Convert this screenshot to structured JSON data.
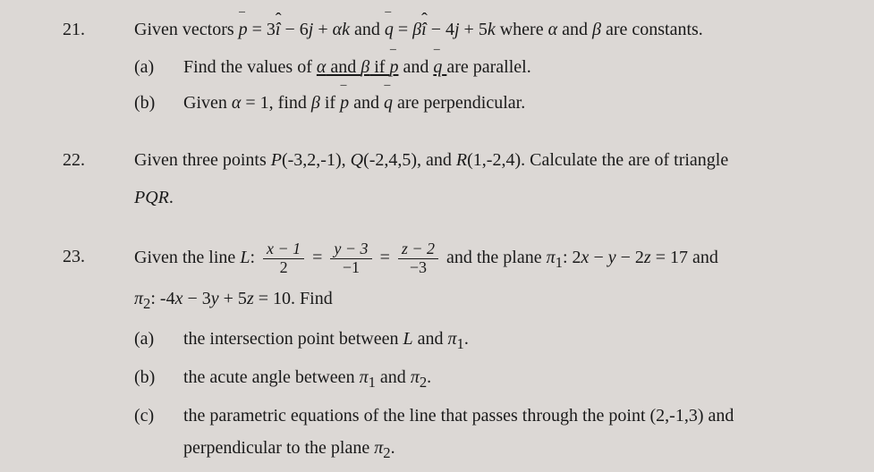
{
  "background_color": "#dcd8d5",
  "text_color": "#1a1a1a",
  "font_family": "Times New Roman",
  "font_size": 20,
  "problems": {
    "p21": {
      "number": "21.",
      "intro_pre": "Given vectors ",
      "eq1_lhs_vec": "p",
      "eq1_eq": " = 3",
      "eq1_i": "î",
      "eq1_mid1": " − 6",
      "eq1_j": "j",
      "eq1_mid2": " + ",
      "eq1_alpha": "α",
      "eq1_k": "k",
      "intro_and": " and ",
      "eq2_lhs_vec": "q",
      "eq2_eq": " = ",
      "eq2_beta": "β",
      "eq2_i": "î",
      "eq2_mid1": " − 4",
      "eq2_j": "j",
      "eq2_mid2": " + 5",
      "eq2_k": "k",
      "intro_tail": " where ",
      "alpha_var": "α",
      "and2": " and ",
      "beta_var": "β",
      "intro_end": " are constants.",
      "a_label": "(a)",
      "a_pre": "Find the values of ",
      "a_alpha": "α",
      "a_and": " and ",
      "a_beta": "β",
      "a_if": " if ",
      "a_p": "p",
      "a_and2": " and ",
      "a_q": "q",
      "a_end": " are parallel.",
      "b_label": "(b)",
      "b_pre": "Given ",
      "b_alpha": "α",
      "b_eq": " = 1, find ",
      "b_beta": "β",
      "b_if": " if ",
      "b_p": "p",
      "b_and": " and ",
      "b_q": "q",
      "b_end": " are perpendicular."
    },
    "p22": {
      "number": "22.",
      "text_pre": "Given three points ",
      "P": "P",
      "P_coords": "(-3,2,-1), ",
      "Q": "Q",
      "Q_coords": "(-2,4,5), and ",
      "R": "R",
      "R_coords": "(1,-2,4). Calculate the are of triangle",
      "line2": "PQR",
      "line2_end": "."
    },
    "p23": {
      "number": "23.",
      "intro_pre": "Given the line ",
      "L": "L",
      "colon": ":  ",
      "f1_num": "x − 1",
      "f1_den": "2",
      "eq1": " = ",
      "f2_num": "y − 3",
      "f2_den": "−1",
      "eq2": " = ",
      "f3_num": "z − 2",
      "f3_den": "−3",
      "intro_mid": " and the plane ",
      "pi1": "π",
      "pi1_sub": "1",
      "pi1_colon": ": 2",
      "pi1_x": "x",
      "pi1_mid1": " − ",
      "pi1_y": "y",
      "pi1_mid2": " − 2",
      "pi1_z": "z",
      "pi1_end": " = 17 and",
      "line2_pi2": "π",
      "line2_pi2_sub": "2",
      "line2_colon": ": ",
      "line2_neg4": "-4",
      "line2_x": "x",
      "line2_mid1": " − 3",
      "line2_y": "y",
      "line2_mid2": " + 5",
      "line2_z": "z",
      "line2_end": " = 10. Find",
      "a_label": "(a)",
      "a_pre": "the intersection point between ",
      "a_L": "L",
      "a_and": " and  ",
      "a_pi": "π",
      "a_pi_sub": "1",
      "a_end": ".",
      "b_label": "(b)",
      "b_pre": "the acute angle between ",
      "b_pi1": "π",
      "b_pi1_sub": "1",
      "b_and": " and ",
      "b_pi2": "π",
      "b_pi2_sub": "2",
      "b_end": ".",
      "c_label": "(c)",
      "c_pre": "the parametric equations of the line that passes through the point (2,-1,3) and",
      "c_line2_pre": "perpendicular to the plane ",
      "c_pi": "π",
      "c_pi_sub": "2",
      "c_end": "."
    }
  }
}
